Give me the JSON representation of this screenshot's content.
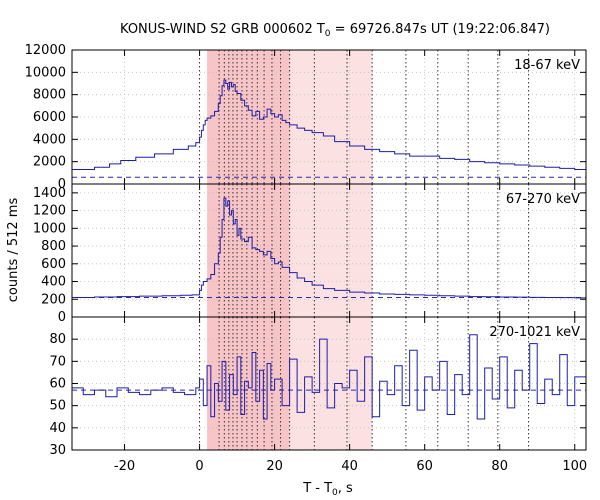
{
  "chart_data": {
    "type": "line",
    "title": "KONUS-WIND S2 GRB 000602 T",
    "title_sub": "0",
    "title_rest": " = 69726.847s UT (19:22:06.847)",
    "xlabel": "T - T",
    "xlabel_sub": "0",
    "xlabel_unit": ", s",
    "ylabel": "counts / 512 ms",
    "xlim": [
      -34,
      103
    ],
    "x_ticks": [
      -20,
      0,
      20,
      40,
      60,
      80,
      100
    ],
    "x_tick_labels": [
      "-20",
      "0",
      "20",
      "40",
      "60",
      "80",
      "100"
    ],
    "shaded_intervals": [
      [
        2.0,
        24.0
      ],
      [
        24.0,
        46.0
      ]
    ],
    "dotted_lines_x": [
      0,
      5.2,
      6.6,
      7.8,
      8.9,
      10.0,
      11.3,
      12.6,
      14.0,
      15.4,
      17.2,
      19.3,
      21.6,
      24.0,
      30.6,
      39.3,
      46.0,
      55.0,
      63.5,
      71.6,
      79.5,
      87.7
    ],
    "grid": true,
    "panels": [
      {
        "label": "18-67 keV",
        "ylim": [
          0,
          12000
        ],
        "y_ticks": [
          0,
          2000,
          4000,
          6000,
          8000,
          10000,
          12000
        ],
        "y_tick_labels": [
          "0",
          "2000",
          "4000",
          "6000",
          "8000",
          "10000",
          "12000"
        ],
        "background": 600,
        "series": [
          {
            "x": [
              -34,
              -28,
              -24,
              -21,
              -17,
              -12,
              -7,
              -3,
              -1,
              0,
              0.5,
              1,
              1.5,
              2,
              3,
              4,
              5,
              5.5,
              6,
              6.5,
              7,
              7.5,
              8,
              8.5,
              9,
              9.5,
              10,
              11,
              12,
              13,
              14,
              15,
              16,
              17,
              18,
              19,
              20,
              21,
              22,
              23,
              24,
              26,
              28,
              30,
              33,
              36,
              40,
              44,
              48,
              52,
              56,
              60,
              64,
              68,
              72,
              76,
              80,
              84,
              88,
              92,
              96,
              100,
              103
            ],
            "y": [
              1300,
              1500,
              1800,
              2100,
              2400,
              2700,
              3100,
              3400,
              3700,
              4200,
              4800,
              5300,
              5700,
              5900,
              6100,
              6500,
              7200,
              7900,
              8800,
              9300,
              9000,
              8500,
              9100,
              8700,
              8900,
              8300,
              8100,
              7500,
              7000,
              6600,
              6100,
              6500,
              5800,
              6000,
              6700,
              6300,
              6000,
              6200,
              5700,
              5500,
              5300,
              5000,
              4800,
              4600,
              4300,
              3800,
              3400,
              3100,
              2900,
              2700,
              2500,
              2500,
              2300,
              2200,
              2000,
              1900,
              1800,
              1700,
              1600,
              1500,
              1400,
              1300,
              1250
            ]
          }
        ]
      },
      {
        "label": "67-270 keV",
        "ylim": [
          0,
          1500
        ],
        "y_ticks": [
          0,
          200,
          400,
          600,
          800,
          1000,
          1200,
          1400
        ],
        "y_tick_labels": [
          "0",
          "200",
          "400",
          "600",
          "800",
          "1000",
          "1200",
          "1400"
        ],
        "background": 220,
        "series": [
          {
            "x": [
              -34,
              -28,
              -22,
              -16,
              -10,
              -5,
              -2,
              0,
              0.5,
              1,
              2,
              3,
              4,
              5,
              5.5,
              6,
              6.5,
              7,
              7.5,
              8,
              8.5,
              9,
              9.5,
              10,
              10.5,
              11,
              12,
              13,
              14,
              15,
              16,
              17,
              18,
              19,
              20,
              21,
              22,
              24,
              26,
              28,
              30,
              33,
              36,
              40,
              44,
              48,
              52,
              56,
              60,
              64,
              68,
              72,
              76,
              80,
              84,
              88,
              92,
              96,
              100,
              103
            ],
            "y": [
              220,
              225,
              230,
              235,
              240,
              245,
              250,
              300,
              360,
              400,
              430,
              480,
              600,
              720,
              900,
              1100,
              1340,
              1250,
              1310,
              1150,
              1200,
              1050,
              1100,
              920,
              1000,
              880,
              850,
              900,
              780,
              760,
              740,
              700,
              740,
              660,
              600,
              620,
              560,
              500,
              440,
              400,
              360,
              320,
              300,
              280,
              270,
              260,
              255,
              250,
              245,
              240,
              235,
              230,
              228,
              226,
              224,
              222,
              220,
              218,
              216,
              215
            ]
          }
        ]
      },
      {
        "label": "270-1021 keV",
        "ylim": [
          30,
          90
        ],
        "y_ticks": [
          30,
          40,
          50,
          60,
          70,
          80
        ],
        "y_tick_labels": [
          "30",
          "40",
          "50",
          "60",
          "70",
          "80"
        ],
        "background": 57,
        "series": [
          {
            "x": [
              -34,
              -31,
              -28,
              -25,
              -22,
              -19,
              -16,
              -13,
              -10,
              -7,
              -4,
              -1,
              0,
              1,
              2,
              3,
              4,
              5,
              6,
              7,
              8,
              9,
              10,
              11,
              12,
              13,
              14,
              15,
              16,
              17,
              18,
              19,
              20,
              22,
              24,
              26,
              28,
              30,
              32,
              34,
              36,
              38,
              40,
              42,
              44,
              46,
              48,
              50,
              52,
              54,
              56,
              58,
              60,
              62,
              64,
              66,
              68,
              70,
              72,
              74,
              76,
              78,
              80,
              82,
              84,
              86,
              88,
              90,
              92,
              94,
              96,
              98,
              100,
              103
            ],
            "y": [
              58,
              55,
              57,
              54,
              58,
              56,
              55,
              57,
              58,
              56,
              55,
              58,
              62,
              50,
              68,
              45,
              60,
              52,
              70,
              48,
              64,
              55,
              72,
              46,
              61,
              58,
              74,
              52,
              66,
              44,
              69,
              57,
              62,
              50,
              71,
              47,
              63,
              56,
              80,
              49,
              60,
              58,
              66,
              52,
              72,
              45,
              61,
              55,
              68,
              50,
              75,
              48,
              63,
              57,
              70,
              46,
              64,
              55,
              82,
              44,
              67,
              53,
              72,
              49,
              66,
              57,
              78,
              51,
              62,
              55,
              73,
              50,
              63,
              60
            ]
          }
        ]
      }
    ]
  }
}
